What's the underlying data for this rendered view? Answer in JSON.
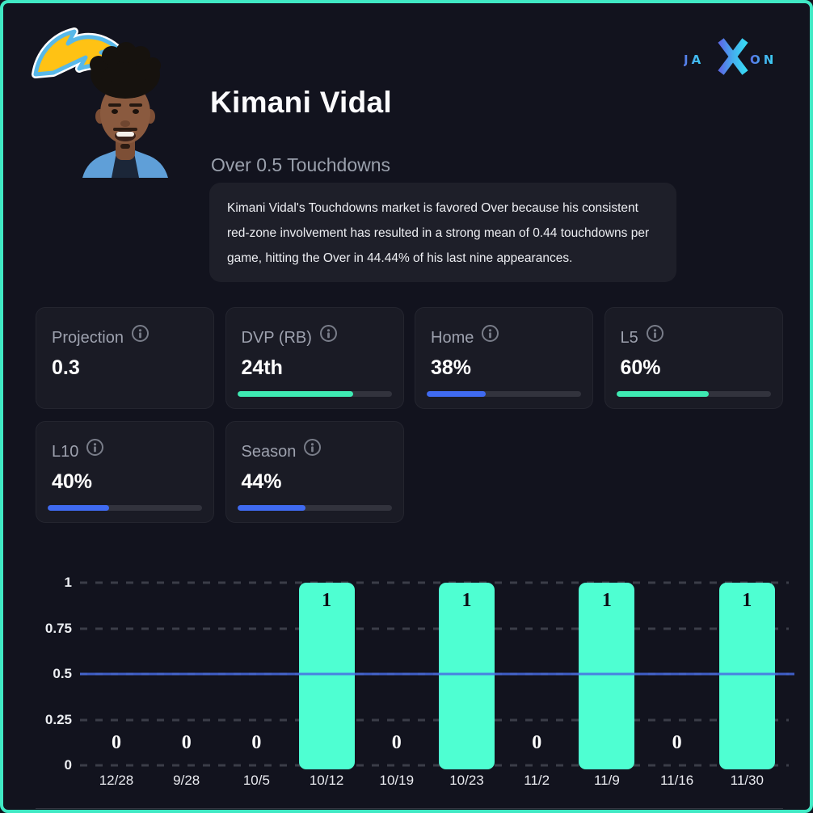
{
  "page": {
    "bg_color": "#12131e",
    "border_color": "#40e9c4"
  },
  "header": {
    "team_logo": "chargers-lightning-bolt",
    "player_name": "Kimani Vidal",
    "market_label": "Over 0.5 Touchdowns",
    "description": "Kimani Vidal's Touchdowns market is favored Over because his consistent red-zone involvement has resulted in a strong mean of 0.44 touchdowns per game, hitting the Over in 44.44% of his last nine appearances.",
    "brand": {
      "full": "JAXON",
      "ja": "JA",
      "x": "X",
      "on": "ON"
    }
  },
  "stat_cards": [
    {
      "label": "Projection",
      "value": "0.3",
      "bar_pct": null,
      "bar_color": null
    },
    {
      "label": "DVP (RB)",
      "value": "24th",
      "bar_pct": 75,
      "bar_color": "#3ee9b2"
    },
    {
      "label": "Home",
      "value": "38%",
      "bar_pct": 38,
      "bar_color": "#3f6af0"
    },
    {
      "label": "L5",
      "value": "60%",
      "bar_pct": 60,
      "bar_color": "#3ee9b2"
    },
    {
      "label": "L10",
      "value": "40%",
      "bar_pct": 40,
      "bar_color": "#3f6af0"
    },
    {
      "label": "Season",
      "value": "44%",
      "bar_pct": 44,
      "bar_color": "#3f6af0"
    }
  ],
  "chart_data": {
    "type": "bar",
    "categories": [
      "12/28",
      "9/28",
      "10/5",
      "10/12",
      "10/19",
      "10/23",
      "11/2",
      "11/9",
      "11/16",
      "11/30"
    ],
    "values": [
      0,
      0,
      0,
      1,
      0,
      1,
      0,
      1,
      0,
      1
    ],
    "line_value": 0.5,
    "yticks": [
      0,
      0.25,
      0.5,
      0.75,
      1
    ],
    "ytick_labels": [
      "0",
      "0.25",
      "0.5",
      "0.75",
      "1"
    ],
    "ylim": [
      0,
      1
    ],
    "bar_color": "#4effd2",
    "line_color": "#486ce4",
    "grid": "dashed-horizontal",
    "title": "",
    "xlabel": "",
    "ylabel": ""
  }
}
